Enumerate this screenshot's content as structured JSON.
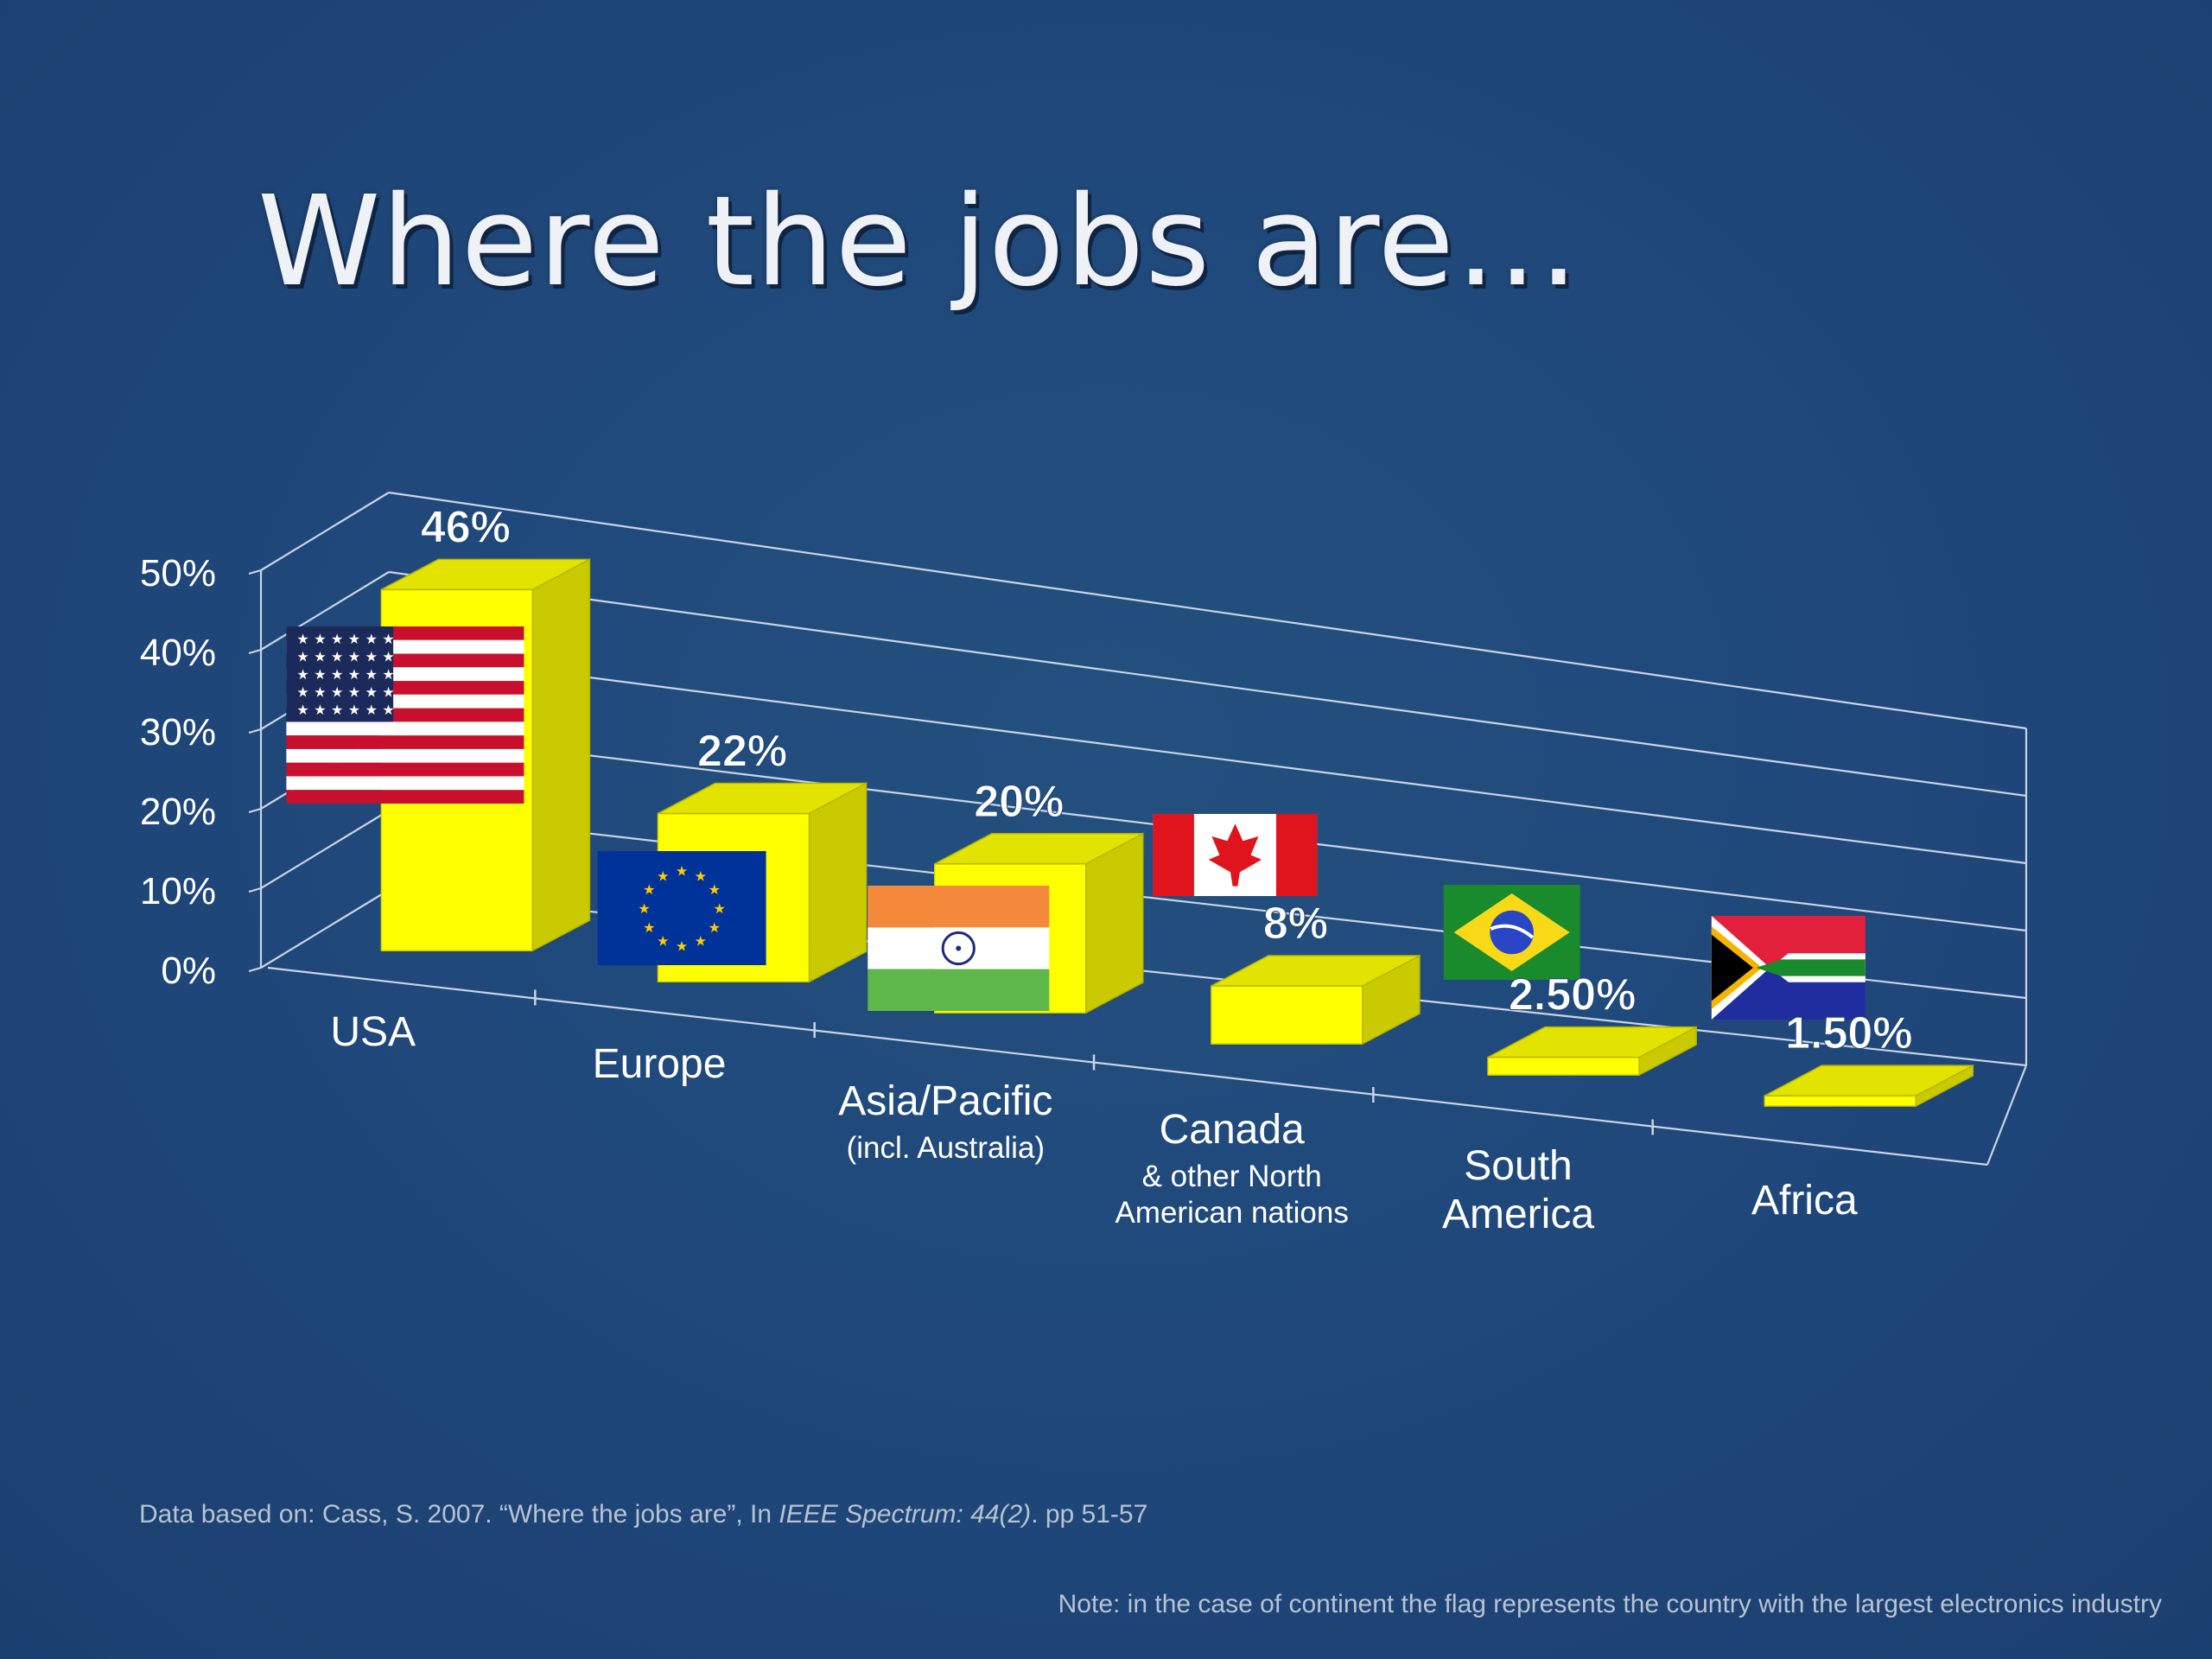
{
  "title": "Where the jobs are…",
  "chart_data": {
    "type": "bar",
    "categories": [
      "USA",
      "Europe",
      "Asia/Pacific",
      "Canada",
      "South America",
      "Africa"
    ],
    "category_labels": [
      {
        "lines": [
          "USA"
        ],
        "sub": []
      },
      {
        "lines": [
          "Europe"
        ],
        "sub": []
      },
      {
        "lines": [
          "Asia/Pacific"
        ],
        "sub": [
          "(incl. Australia)"
        ]
      },
      {
        "lines": [
          "Canada"
        ],
        "sub": [
          "& other North",
          "American nations"
        ]
      },
      {
        "lines": [
          "South",
          "America"
        ],
        "sub": []
      },
      {
        "lines": [
          "Africa"
        ],
        "sub": []
      }
    ],
    "values": [
      46,
      22,
      20,
      8,
      2.5,
      1.5
    ],
    "data_labels": [
      "46%",
      "22%",
      "20%",
      "8%",
      "2.50%",
      "1.50%"
    ],
    "y_ticks": [
      "0%",
      "10%",
      "20%",
      "30%",
      "40%",
      "50%"
    ],
    "ylim": [
      0,
      50
    ],
    "grid": true,
    "style": "3d",
    "bar_color": "#ffff00",
    "flags": [
      "usa",
      "eu",
      "india",
      "canada",
      "brazil",
      "south-africa"
    ]
  },
  "footnotes": {
    "source_prefix": "Data based on: Cass, S. 2007. “Where the jobs are”, In ",
    "source_journal": "IEEE Spectrum: 44(2)",
    "source_suffix": ". pp 51-57",
    "note": "Note: in the case of continent the flag represents the country with the largest electronics industry"
  }
}
